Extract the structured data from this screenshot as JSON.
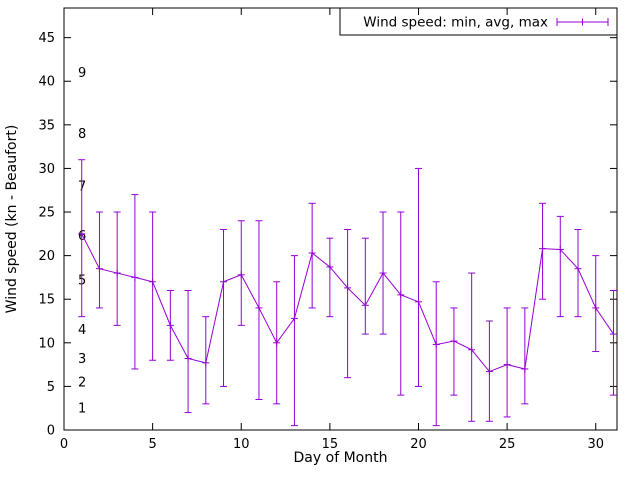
{
  "chart_data": {
    "type": "line",
    "subtype": "errorbars",
    "legend_label": "Wind speed: min, avg, max",
    "xlabel": "Day of Month",
    "ylabel": "Wind speed (kn - Beaufort)",
    "xlim": [
      0,
      31.2
    ],
    "ylim": [
      0,
      48.4
    ],
    "xticks": [
      0,
      5,
      10,
      15,
      20,
      25,
      30
    ],
    "yticks": [
      0,
      5,
      10,
      15,
      20,
      25,
      30,
      35,
      40,
      45
    ],
    "grid": false,
    "legend_position": "top-right-boxed",
    "series_color": "#9400d3",
    "axis_color": "#000000",
    "beaufort_marks": [
      {
        "label": "1",
        "y": 2.5
      },
      {
        "label": "2",
        "y": 5.5
      },
      {
        "label": "3",
        "y": 8.2
      },
      {
        "label": "4",
        "y": 11.5
      },
      {
        "label": "5",
        "y": 17.2
      },
      {
        "label": "6",
        "y": 22.3
      },
      {
        "label": "7",
        "y": 28.0
      },
      {
        "label": "8",
        "y": 34.0
      },
      {
        "label": "9",
        "y": 41.0
      }
    ],
    "points": [
      {
        "x": 1,
        "min": 13.0,
        "avg": 22.5,
        "max": 31.0
      },
      {
        "x": 2,
        "min": 14.0,
        "avg": 18.5,
        "max": 25.0
      },
      {
        "x": 3,
        "min": 12.0,
        "avg": 18.0,
        "max": 25.0
      },
      {
        "x": 4,
        "min": 7.0,
        "avg": 17.5,
        "max": 27.0
      },
      {
        "x": 5,
        "min": 8.0,
        "avg": 17.0,
        "max": 25.0
      },
      {
        "x": 6,
        "min": 8.0,
        "avg": 12.0,
        "max": 16.0
      },
      {
        "x": 7,
        "min": 2.0,
        "avg": 8.2,
        "max": 16.0
      },
      {
        "x": 8,
        "min": 3.0,
        "avg": 7.7,
        "max": 13.0
      },
      {
        "x": 9,
        "min": 5.0,
        "avg": 17.0,
        "max": 23.0
      },
      {
        "x": 10,
        "min": 12.0,
        "avg": 17.8,
        "max": 24.0
      },
      {
        "x": 11,
        "min": 3.5,
        "avg": 14.0,
        "max": 24.0
      },
      {
        "x": 12,
        "min": 3.0,
        "avg": 10.0,
        "max": 17.0
      },
      {
        "x": 13,
        "min": 0.5,
        "avg": 12.8,
        "max": 20.0
      },
      {
        "x": 14,
        "min": 14.0,
        "avg": 20.3,
        "max": 26.0
      },
      {
        "x": 15,
        "min": 13.0,
        "avg": 18.7,
        "max": 22.0
      },
      {
        "x": 16,
        "min": 6.0,
        "avg": 16.3,
        "max": 23.0
      },
      {
        "x": 17,
        "min": 11.0,
        "avg": 14.3,
        "max": 22.0
      },
      {
        "x": 18,
        "min": 11.0,
        "avg": 18.0,
        "max": 25.0
      },
      {
        "x": 19,
        "min": 4.0,
        "avg": 15.5,
        "max": 25.0
      },
      {
        "x": 20,
        "min": 5.0,
        "avg": 14.7,
        "max": 30.0
      },
      {
        "x": 21,
        "min": 0.5,
        "avg": 9.8,
        "max": 17.0
      },
      {
        "x": 22,
        "min": 4.0,
        "avg": 10.2,
        "max": 14.0
      },
      {
        "x": 23,
        "min": 1.0,
        "avg": 9.2,
        "max": 18.0
      },
      {
        "x": 24,
        "min": 1.0,
        "avg": 6.7,
        "max": 12.5
      },
      {
        "x": 25,
        "min": 1.5,
        "avg": 7.5,
        "max": 14.0
      },
      {
        "x": 26,
        "min": 3.0,
        "avg": 7.0,
        "max": 14.0
      },
      {
        "x": 27,
        "min": 15.0,
        "avg": 20.8,
        "max": 26.0
      },
      {
        "x": 28,
        "min": 13.0,
        "avg": 20.7,
        "max": 24.5
      },
      {
        "x": 29,
        "min": 13.0,
        "avg": 18.5,
        "max": 23.0
      },
      {
        "x": 30,
        "min": 9.0,
        "avg": 14.0,
        "max": 20.0
      },
      {
        "x": 31,
        "min": 4.0,
        "avg": 11.0,
        "max": 16.0
      }
    ]
  }
}
